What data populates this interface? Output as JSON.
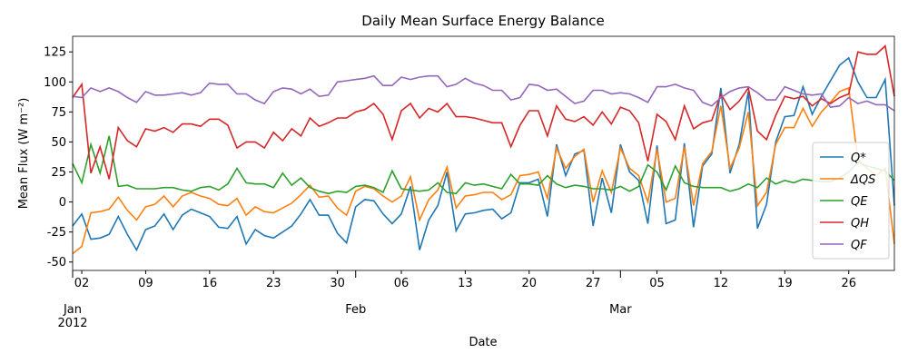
{
  "chart_data": {
    "type": "line",
    "title": "Daily Mean Surface Energy Balance",
    "xlabel": "Date",
    "ylabel": "Mean Flux (W m⁻²)",
    "x": [
      "2012-01-01",
      "2012-01-02",
      "2012-01-03",
      "2012-01-04",
      "2012-01-05",
      "2012-01-06",
      "2012-01-07",
      "2012-01-08",
      "2012-01-09",
      "2012-01-10",
      "2012-01-11",
      "2012-01-12",
      "2012-01-13",
      "2012-01-14",
      "2012-01-15",
      "2012-01-16",
      "2012-01-17",
      "2012-01-18",
      "2012-01-19",
      "2012-01-20",
      "2012-01-21",
      "2012-01-22",
      "2012-01-23",
      "2012-01-24",
      "2012-01-25",
      "2012-01-26",
      "2012-01-27",
      "2012-01-28",
      "2012-01-29",
      "2012-01-30",
      "2012-01-31",
      "2012-02-01",
      "2012-02-02",
      "2012-02-03",
      "2012-02-04",
      "2012-02-05",
      "2012-02-06",
      "2012-02-07",
      "2012-02-08",
      "2012-02-09",
      "2012-02-10",
      "2012-02-11",
      "2012-02-12",
      "2012-02-13",
      "2012-02-14",
      "2012-02-15",
      "2012-02-16",
      "2012-02-17",
      "2012-02-18",
      "2012-02-19",
      "2012-02-20",
      "2012-02-21",
      "2012-02-22",
      "2012-02-23",
      "2012-02-24",
      "2012-02-25",
      "2012-02-26",
      "2012-02-27",
      "2012-02-28",
      "2012-02-29",
      "2012-03-01",
      "2012-03-02",
      "2012-03-03",
      "2012-03-04",
      "2012-03-05",
      "2012-03-06",
      "2012-03-07",
      "2012-03-08",
      "2012-03-09",
      "2012-03-10",
      "2012-03-11",
      "2012-03-12",
      "2012-03-13",
      "2012-03-14",
      "2012-03-15",
      "2012-03-16",
      "2012-03-17",
      "2012-03-18",
      "2012-03-19",
      "2012-03-20",
      "2012-03-21",
      "2012-03-22",
      "2012-03-23",
      "2012-03-24",
      "2012-03-25",
      "2012-03-26",
      "2012-03-27",
      "2012-03-28",
      "2012-03-29",
      "2012-03-30",
      "2012-03-31"
    ],
    "series": [
      {
        "name": "Q*",
        "color": "#1f77b4",
        "values": [
          -20,
          -10,
          -31,
          -30,
          -27,
          -12,
          -27,
          -40,
          -23,
          -20,
          -10,
          -23,
          -11,
          -6,
          -9,
          -12,
          -21,
          -22,
          -12,
          -35,
          -23,
          -28,
          -30,
          -25,
          -20,
          -10,
          2,
          -11,
          -11,
          -26,
          -34,
          -4,
          2,
          1,
          -10,
          -18,
          -10,
          13,
          -40,
          -15,
          -3,
          25,
          -24,
          -10,
          -9,
          -7,
          -6,
          -14,
          -9,
          16,
          16,
          19,
          -12,
          48,
          22,
          40,
          43,
          -20,
          20,
          -9,
          48,
          25,
          18,
          -18,
          47,
          -18,
          -15,
          49,
          -21,
          30,
          40,
          95,
          24,
          48,
          92,
          -22,
          -2,
          50,
          71,
          72,
          96,
          73,
          88,
          101,
          114,
          120,
          100,
          87,
          87,
          102,
          -3
        ]
      },
      {
        "name": "ΔQS",
        "color": "#ff7f0e",
        "values": [
          -43,
          -37,
          -9,
          -8,
          -6,
          4,
          -7,
          -15,
          -4,
          -2,
          5,
          -4,
          5,
          8,
          5,
          3,
          -2,
          -3,
          3,
          -11,
          -4,
          -8,
          -9,
          -5,
          -1,
          6,
          14,
          4,
          5,
          -5,
          -11,
          9,
          13,
          11,
          5,
          0,
          5,
          21,
          -15,
          2,
          10,
          29,
          -5,
          5,
          6,
          8,
          8,
          2,
          6,
          22,
          23,
          25,
          3,
          45,
          28,
          38,
          44,
          0,
          26,
          8,
          45,
          28,
          22,
          0,
          44,
          0,
          3,
          46,
          -3,
          32,
          42,
          80,
          28,
          45,
          75,
          -3,
          8,
          48,
          62,
          62,
          78,
          63,
          75,
          83,
          92,
          95,
          35,
          28,
          22,
          28,
          -35
        ]
      },
      {
        "name": "QE",
        "color": "#2ca02c",
        "values": [
          32,
          16,
          48,
          24,
          55,
          13,
          14,
          11,
          11,
          11,
          12,
          12,
          10,
          9,
          12,
          13,
          10,
          15,
          28,
          16,
          15,
          15,
          12,
          24,
          14,
          20,
          12,
          9,
          7,
          9,
          8,
          13,
          14,
          12,
          8,
          26,
          11,
          10,
          9,
          10,
          16,
          8,
          7,
          16,
          14,
          15,
          13,
          11,
          23,
          15,
          15,
          14,
          22,
          15,
          12,
          14,
          13,
          11,
          11,
          10,
          13,
          9,
          13,
          31,
          25,
          10,
          30,
          16,
          13,
          12,
          12,
          12,
          9,
          11,
          15,
          12,
          20,
          15,
          18,
          16,
          19,
          18,
          17,
          17,
          20,
          25,
          33,
          30,
          28,
          26,
          18
        ]
      },
      {
        "name": "QH",
        "color": "#d62728",
        "values": [
          87,
          98,
          24,
          46,
          19,
          62,
          51,
          46,
          61,
          59,
          62,
          58,
          65,
          65,
          63,
          69,
          69,
          64,
          45,
          50,
          50,
          45,
          58,
          51,
          61,
          55,
          70,
          63,
          66,
          70,
          70,
          75,
          77,
          82,
          73,
          52,
          76,
          82,
          70,
          78,
          75,
          82,
          71,
          71,
          70,
          68,
          66,
          66,
          46,
          64,
          76,
          76,
          55,
          80,
          69,
          67,
          71,
          64,
          75,
          65,
          79,
          76,
          66,
          34,
          73,
          67,
          52,
          80,
          61,
          66,
          68,
          90,
          77,
          84,
          95,
          59,
          52,
          72,
          88,
          86,
          88,
          80,
          86,
          82,
          87,
          90,
          125,
          123,
          123,
          130,
          88
        ]
      },
      {
        "name": "QF",
        "color": "#9467bd",
        "values": [
          88,
          87,
          95,
          92,
          95,
          92,
          87,
          83,
          92,
          89,
          89,
          90,
          91,
          89,
          91,
          99,
          98,
          98,
          90,
          90,
          85,
          82,
          92,
          95,
          94,
          90,
          94,
          88,
          89,
          100,
          101,
          102,
          103,
          105,
          97,
          97,
          104,
          102,
          104,
          105,
          105,
          96,
          98,
          103,
          99,
          97,
          93,
          93,
          85,
          87,
          98,
          97,
          93,
          94,
          88,
          82,
          84,
          93,
          93,
          90,
          91,
          90,
          87,
          83,
          96,
          96,
          98,
          95,
          93,
          83,
          80,
          87,
          92,
          95,
          96,
          91,
          85,
          85,
          96,
          93,
          90,
          89,
          90,
          79,
          80,
          87,
          82,
          84,
          81,
          81,
          76
        ]
      }
    ],
    "xlim": [
      "2012-01-01",
      "2012-03-31"
    ],
    "xticks": [
      {
        "value": "2012-01-02",
        "label": "02"
      },
      {
        "value": "2012-01-09",
        "label": "09"
      },
      {
        "value": "2012-01-16",
        "label": "16"
      },
      {
        "value": "2012-01-23",
        "label": "23"
      },
      {
        "value": "2012-01-30",
        "label": "30"
      },
      {
        "value": "2012-02-06",
        "label": "06"
      },
      {
        "value": "2012-02-13",
        "label": "13"
      },
      {
        "value": "2012-02-20",
        "label": "20"
      },
      {
        "value": "2012-02-27",
        "label": "27"
      },
      {
        "value": "2012-03-05",
        "label": "05"
      },
      {
        "value": "2012-03-12",
        "label": "12"
      },
      {
        "value": "2012-03-19",
        "label": "19"
      },
      {
        "value": "2012-03-26",
        "label": "26"
      }
    ],
    "xticks_major": [
      {
        "value": "2012-01-01",
        "label": "Jan\n2012"
      },
      {
        "value": "2012-02-01",
        "label": "Feb"
      },
      {
        "value": "2012-03-01",
        "label": "Mar"
      }
    ],
    "ylim": [
      -57,
      138
    ],
    "yticks": [
      -50,
      -25,
      0,
      25,
      50,
      75,
      100,
      125
    ],
    "legend": "right"
  }
}
